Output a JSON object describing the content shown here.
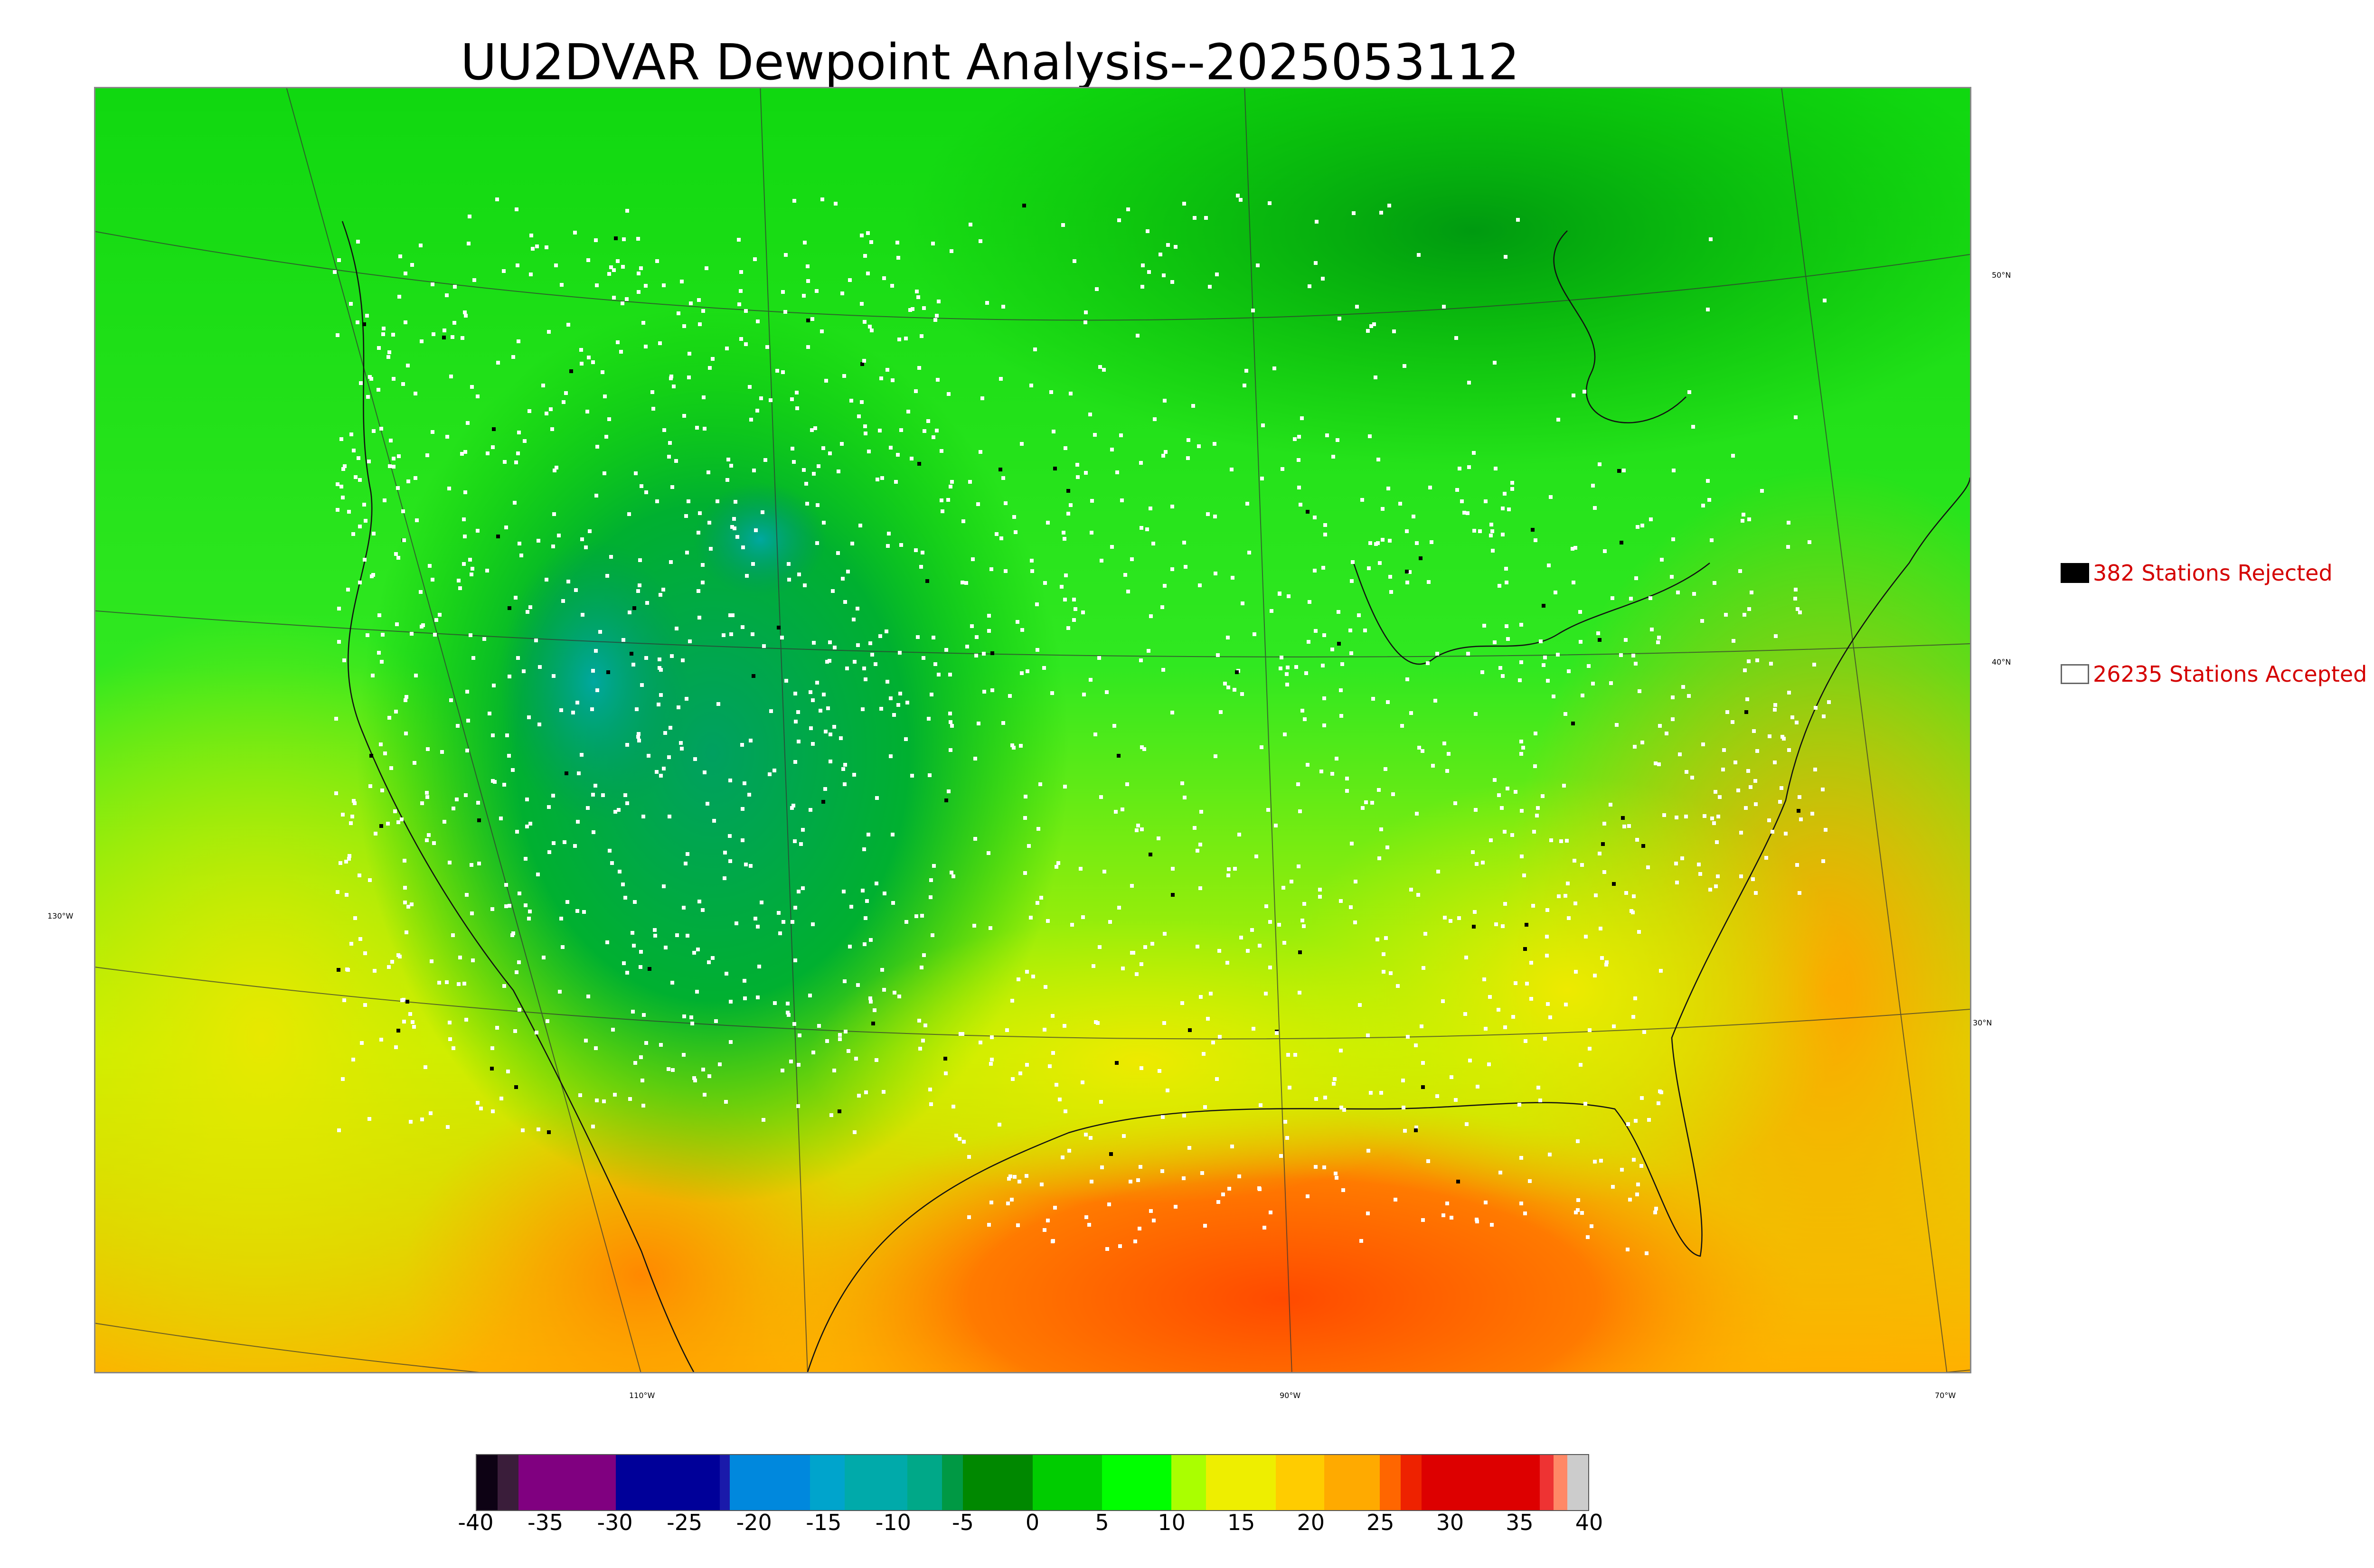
{
  "title": "UU2DVAR Dewpoint Analysis--2025053112",
  "legend": {
    "rejected": {
      "label": "382 Stations Rejected",
      "swatch": "#000000"
    },
    "accepted": {
      "label": "26235 Stations Accepted",
      "swatch": "#ffffff"
    }
  },
  "graticule": {
    "longitudes": [
      "130°W",
      "110°W",
      "90°W",
      "70°W"
    ],
    "latitudes": [
      "50°N",
      "40°N",
      "30°N"
    ]
  },
  "colorbar": {
    "ticks": [
      "-40",
      "-35",
      "-30",
      "-25",
      "-20",
      "-15",
      "-10",
      "-5",
      "0",
      "5",
      "10",
      "15",
      "20",
      "25",
      "30",
      "35",
      "40"
    ],
    "range": [
      -40,
      40
    ],
    "colors": [
      {
        "from": -40,
        "to": -38.5,
        "color": "#0d0214"
      },
      {
        "from": -38.5,
        "to": -37,
        "color": "#3a1d3a"
      },
      {
        "from": -37,
        "to": -30,
        "color": "#800080"
      },
      {
        "from": -30,
        "to": -22.5,
        "color": "#000099"
      },
      {
        "from": -22.5,
        "to": -21.8,
        "color": "#1a1aaa"
      },
      {
        "from": -21.8,
        "to": -16,
        "color": "#0088dd"
      },
      {
        "from": -16,
        "to": -13.5,
        "color": "#00a4cc"
      },
      {
        "from": -13.5,
        "to": -9,
        "color": "#00aaaa"
      },
      {
        "from": -9,
        "to": -6.5,
        "color": "#00a888"
      },
      {
        "from": -6.5,
        "to": -5,
        "color": "#009944"
      },
      {
        "from": -5,
        "to": 0,
        "color": "#008800"
      },
      {
        "from": 0,
        "to": 5,
        "color": "#00cc00"
      },
      {
        "from": 5,
        "to": 10,
        "color": "#00ff00"
      },
      {
        "from": 10,
        "to": 12.5,
        "color": "#aaff00"
      },
      {
        "from": 12.5,
        "to": 17.5,
        "color": "#eeee00"
      },
      {
        "from": 17.5,
        "to": 21,
        "color": "#ffcc00"
      },
      {
        "from": 21,
        "to": 25,
        "color": "#ffaa00"
      },
      {
        "from": 25,
        "to": 26.5,
        "color": "#ff6600"
      },
      {
        "from": 26.5,
        "to": 28,
        "color": "#ee2200"
      },
      {
        "from": 28,
        "to": 36.5,
        "color": "#dd0000"
      },
      {
        "from": 36.5,
        "to": 37.5,
        "color": "#ee3333"
      },
      {
        "from": 37.5,
        "to": 38.5,
        "color": "#ff8866"
      },
      {
        "from": 38.5,
        "to": 40,
        "color": "#cccccc"
      }
    ]
  }
}
